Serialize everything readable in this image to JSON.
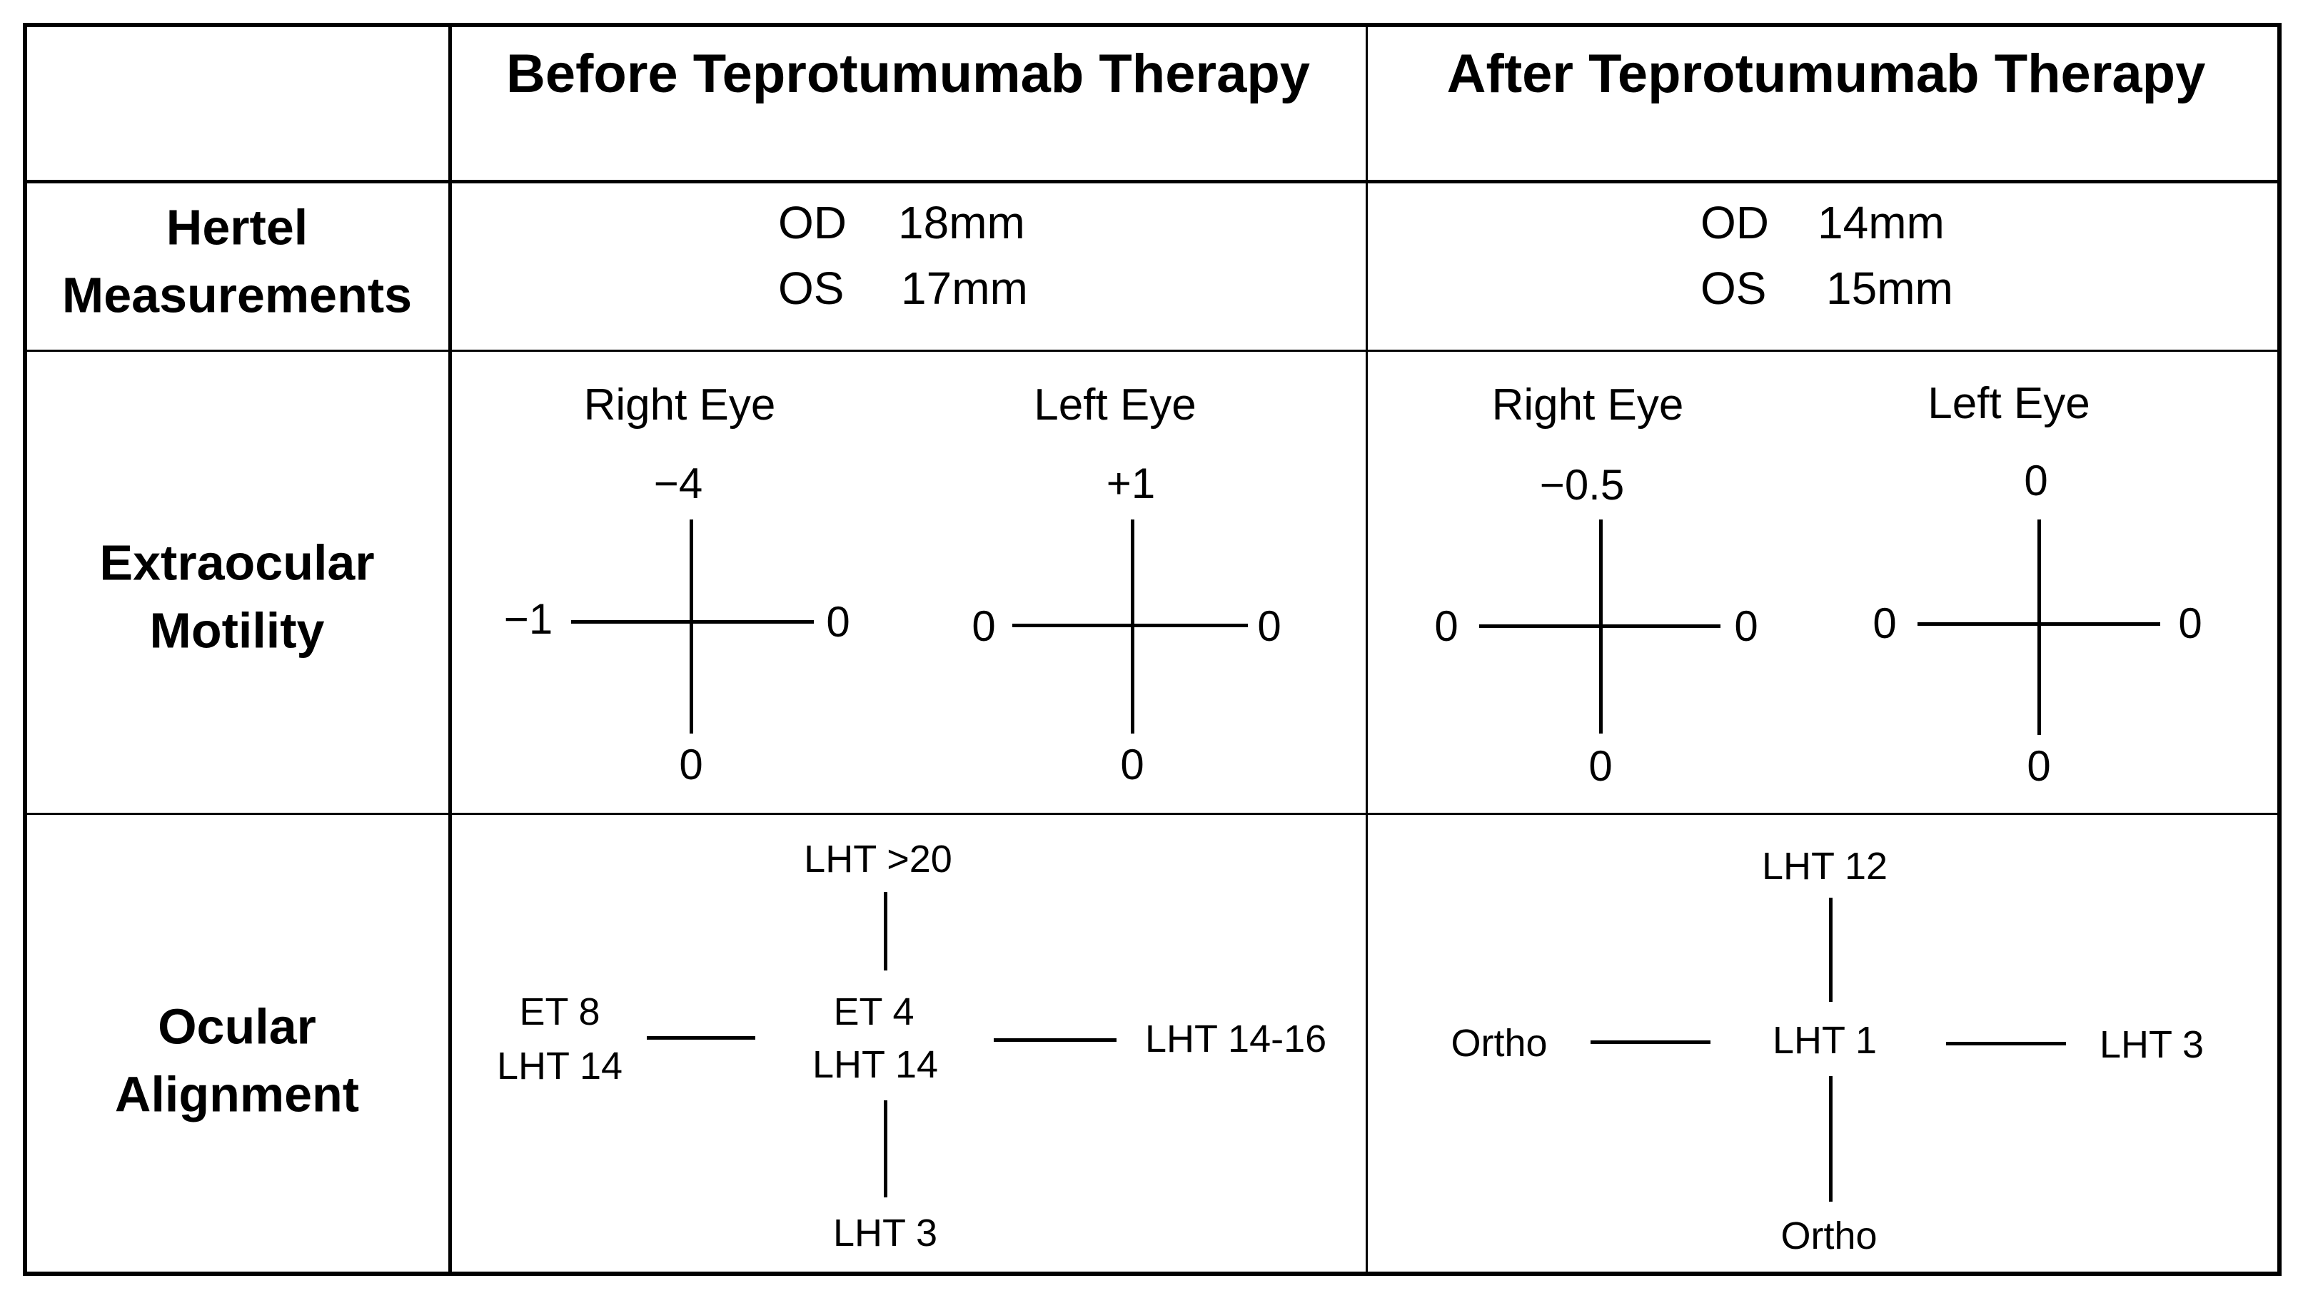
{
  "headers": {
    "corner": "",
    "before": "Before Teprotumumab Therapy",
    "after": "After Teprotumumab Therapy"
  },
  "rows": {
    "hertel": {
      "label_line1": "Hertel",
      "label_line2": "Measurements"
    },
    "motility": {
      "label_line1": "Extraocular",
      "label_line2": "Motility"
    },
    "alignment": {
      "label_line1": "Ocular",
      "label_line2": "Alignment"
    }
  },
  "hertel": {
    "before": {
      "od_label": "OD",
      "od_value": "18mm",
      "os_label": "OS",
      "os_value": "17mm"
    },
    "after": {
      "od_label": "OD",
      "od_value": "14mm",
      "os_label": "OS",
      "os_value": "15mm"
    }
  },
  "motility": {
    "before": {
      "right": {
        "title": "Right Eye",
        "top": "−4",
        "left": "−1",
        "right": "0",
        "bottom": "0"
      },
      "left": {
        "title": "Left Eye",
        "top": "+1",
        "left": "0",
        "right": "0",
        "bottom": "0"
      }
    },
    "after": {
      "right": {
        "title": "Right Eye",
        "top": "−0.5",
        "left": "0",
        "right": "0",
        "bottom": "0"
      },
      "left": {
        "title": "Left Eye",
        "top": "0",
        "left": "0",
        "right": "0",
        "bottom": "0"
      }
    }
  },
  "alignment": {
    "before": {
      "top": "LHT >20",
      "left_line1": "ET 8",
      "left_line2": "LHT 14",
      "center_line1": "ET  4",
      "center_line2": "LHT  14",
      "right": "LHT 14-16",
      "bottom": "LHT 3"
    },
    "after": {
      "top": "LHT  12",
      "left": "Ortho",
      "center": "LHT  1",
      "right": "LHT 3",
      "bottom": "Ortho"
    }
  }
}
